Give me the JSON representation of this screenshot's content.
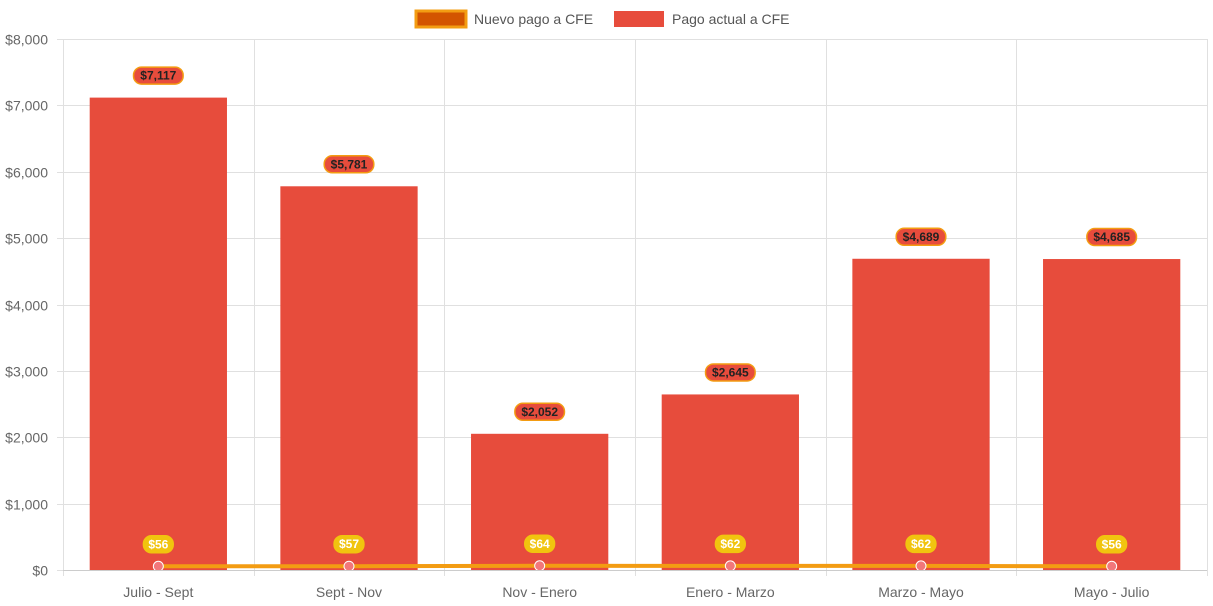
{
  "chart_data": {
    "type": "bar",
    "categories": [
      "Julio - Sept",
      "Sept - Nov",
      "Nov - Enero",
      "Enero - Marzo",
      "Marzo - Mayo",
      "Mayo - Julio"
    ],
    "series": [
      {
        "name": "Nuevo pago a CFE",
        "type": "line",
        "values": [
          56,
          57,
          64,
          62,
          62,
          56
        ],
        "labels": [
          "$56",
          "$57",
          "$64",
          "$62",
          "$62",
          "$56"
        ],
        "color": "#f39c12",
        "point_color": "#f2777a",
        "legend_fill": "#d35400",
        "label_bg": "#f1c40f",
        "label_text_color": "#ffffff"
      },
      {
        "name": "Pago actual a CFE",
        "type": "bar",
        "values": [
          7117,
          5781,
          2052,
          2645,
          4689,
          4685
        ],
        "labels": [
          "$7,117",
          "$5,781",
          "$2,052",
          "$2,645",
          "$4,689",
          "$4,685"
        ],
        "color": "#e74c3c",
        "label_bg": "#e74c3c",
        "label_border": "#f39c12",
        "label_text_color": "#222222"
      }
    ],
    "y_ticks": [
      "$0",
      "$1,000",
      "$2,000",
      "$3,000",
      "$4,000",
      "$5,000",
      "$6,000",
      "$7,000",
      "$8,000"
    ],
    "ylim": [
      0,
      8000
    ],
    "xlabel": "",
    "ylabel": "",
    "title": "",
    "grid": true,
    "legend_position": "top-center"
  }
}
